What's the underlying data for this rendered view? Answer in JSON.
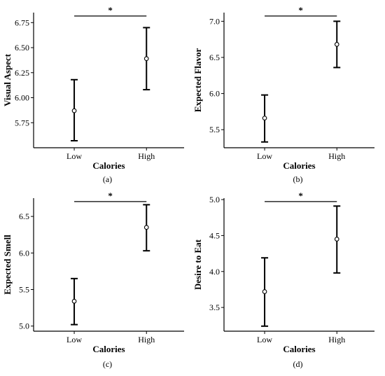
{
  "chart_data": [
    {
      "type": "scatter",
      "panel": "(a)",
      "xlabel": "Calories",
      "ylabel": "Visual Aspect",
      "categories": [
        "Low",
        "High"
      ],
      "values": [
        5.87,
        6.39
      ],
      "error_low": [
        5.57,
        6.08
      ],
      "error_high": [
        6.18,
        6.7
      ],
      "ylim": [
        5.5,
        6.85
      ],
      "yticks": [
        "5.75",
        "6.00",
        "6.25",
        "6.50",
        "6.75"
      ],
      "significance": "*"
    },
    {
      "type": "scatter",
      "panel": "(b)",
      "xlabel": "Calories",
      "ylabel": "Expected Flavor",
      "categories": [
        "Low",
        "High"
      ],
      "values": [
        5.66,
        6.68
      ],
      "error_low": [
        5.33,
        6.36
      ],
      "error_high": [
        5.98,
        7.0
      ],
      "ylim": [
        5.25,
        7.12
      ],
      "yticks": [
        "5.5",
        "6.0",
        "6.5",
        "7.0"
      ],
      "significance": "*"
    },
    {
      "type": "scatter",
      "panel": "(c)",
      "xlabel": "Calories",
      "ylabel": "Expected Smell",
      "categories": [
        "Low",
        "High"
      ],
      "values": [
        5.34,
        6.35
      ],
      "error_low": [
        5.02,
        6.03
      ],
      "error_high": [
        5.65,
        6.66
      ],
      "ylim": [
        4.93,
        6.75
      ],
      "yticks": [
        "5.0",
        "5.5",
        "6.0",
        "6.5"
      ],
      "significance": "*"
    },
    {
      "type": "scatter",
      "panel": "(d)",
      "xlabel": "Calories",
      "ylabel": "Desire to Eat",
      "categories": [
        "Low",
        "High"
      ],
      "values": [
        3.72,
        4.45
      ],
      "error_low": [
        3.24,
        3.98
      ],
      "error_high": [
        4.19,
        4.91
      ],
      "ylim": [
        3.17,
        5.02
      ],
      "yticks": [
        "3.5",
        "4.0",
        "4.5",
        "5.0"
      ],
      "significance": "*"
    }
  ]
}
